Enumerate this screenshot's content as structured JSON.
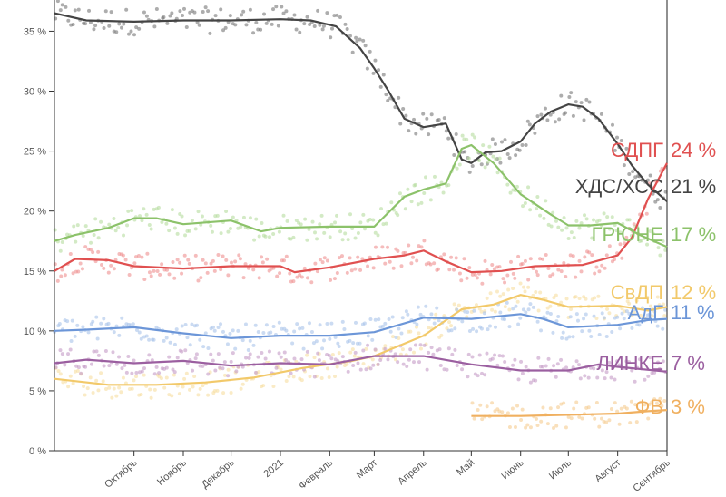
{
  "chart_data": {
    "type": "line",
    "y_unit": "%",
    "ylim": [
      0,
      37
    ],
    "grid": "none",
    "legend": "right, inline at line ends",
    "x_start": "2020-08-12",
    "x_end": "2021-09-01",
    "y_ticks": [
      {
        "value": 0,
        "label": "0 %"
      },
      {
        "value": 5,
        "label": "5 %"
      },
      {
        "value": 10,
        "label": "10 %"
      },
      {
        "value": 15,
        "label": "15 %"
      },
      {
        "value": 20,
        "label": "20 %"
      },
      {
        "value": 25,
        "label": "25 %"
      },
      {
        "value": 30,
        "label": "30 %"
      },
      {
        "value": 35,
        "label": "35 %"
      }
    ],
    "x_ticks": [
      {
        "date": "2020-10-01",
        "label": "Октябрь"
      },
      {
        "date": "2020-11-01",
        "label": "Ноябрь"
      },
      {
        "date": "2020-12-01",
        "label": "Декабрь"
      },
      {
        "date": "2021-01-01",
        "label": "2021"
      },
      {
        "date": "2021-02-01",
        "label": "Февраль"
      },
      {
        "date": "2021-03-01",
        "label": "Март"
      },
      {
        "date": "2021-04-01",
        "label": "Апрель"
      },
      {
        "date": "2021-05-01",
        "label": "Май"
      },
      {
        "date": "2021-06-01",
        "label": "Июнь"
      },
      {
        "date": "2021-07-01",
        "label": "Июль"
      },
      {
        "date": "2021-08-01",
        "label": "Август"
      },
      {
        "date": "2021-09-01",
        "label": "Сентябрь"
      }
    ],
    "series": [
      {
        "name": "ХДС/ХСС",
        "value_label": "21 %",
        "color": "#444444",
        "dot_color": "#777777",
        "points": [
          [
            "2020-08-12",
            36.5
          ],
          [
            "2020-09-01",
            35.9
          ],
          [
            "2020-10-01",
            35.8
          ],
          [
            "2020-11-01",
            35.9
          ],
          [
            "2020-12-01",
            35.9
          ],
          [
            "2021-01-01",
            36.0
          ],
          [
            "2021-01-20",
            35.9
          ],
          [
            "2021-02-05",
            35.4
          ],
          [
            "2021-02-20",
            33.6
          ],
          [
            "2021-03-01",
            31.9
          ],
          [
            "2021-03-10",
            30.0
          ],
          [
            "2021-03-20",
            27.7
          ],
          [
            "2021-04-01",
            27.0
          ],
          [
            "2021-04-15",
            27.3
          ],
          [
            "2021-04-25",
            24.3
          ],
          [
            "2021-05-01",
            24.0
          ],
          [
            "2021-05-10",
            24.9
          ],
          [
            "2021-05-20",
            25.0
          ],
          [
            "2021-06-01",
            25.8
          ],
          [
            "2021-06-10",
            27.3
          ],
          [
            "2021-06-20",
            28.3
          ],
          [
            "2021-07-01",
            28.9
          ],
          [
            "2021-07-10",
            28.7
          ],
          [
            "2021-07-20",
            27.7
          ],
          [
            "2021-08-01",
            25.6
          ],
          [
            "2021-08-10",
            23.8
          ],
          [
            "2021-08-20",
            22.2
          ],
          [
            "2021-09-01",
            20.8
          ]
        ]
      },
      {
        "name": "СДПГ",
        "value_label": "24 %",
        "color": "#e05050",
        "dot_color": "#ee9090",
        "points": [
          [
            "2020-08-12",
            15.0
          ],
          [
            "2020-08-25",
            16.0
          ],
          [
            "2020-09-15",
            15.9
          ],
          [
            "2020-10-01",
            15.4
          ],
          [
            "2020-11-01",
            15.2
          ],
          [
            "2020-12-01",
            15.4
          ],
          [
            "2021-01-01",
            15.4
          ],
          [
            "2021-01-10",
            14.9
          ],
          [
            "2021-02-01",
            15.3
          ],
          [
            "2021-03-01",
            16.0
          ],
          [
            "2021-03-20",
            16.3
          ],
          [
            "2021-04-01",
            16.7
          ],
          [
            "2021-04-15",
            15.8
          ],
          [
            "2021-05-01",
            14.9
          ],
          [
            "2021-05-20",
            15.0
          ],
          [
            "2021-06-10",
            15.4
          ],
          [
            "2021-07-10",
            15.5
          ],
          [
            "2021-08-01",
            16.3
          ],
          [
            "2021-08-10",
            17.8
          ],
          [
            "2021-08-20",
            21.0
          ],
          [
            "2021-09-01",
            24.0
          ]
        ]
      },
      {
        "name": "ГРЮНЕ",
        "value_label": "17 %",
        "color": "#8cc26a",
        "dot_color": "#b6dc9e",
        "points": [
          [
            "2020-08-12",
            17.5
          ],
          [
            "2020-08-25",
            18.0
          ],
          [
            "2020-09-15",
            18.6
          ],
          [
            "2020-10-01",
            19.4
          ],
          [
            "2020-10-15",
            19.4
          ],
          [
            "2020-11-01",
            18.9
          ],
          [
            "2020-12-01",
            19.2
          ],
          [
            "2020-12-20",
            18.3
          ],
          [
            "2021-01-01",
            18.6
          ],
          [
            "2021-02-01",
            18.7
          ],
          [
            "2021-03-01",
            18.7
          ],
          [
            "2021-03-20",
            21.2
          ],
          [
            "2021-04-01",
            21.8
          ],
          [
            "2021-04-15",
            22.3
          ],
          [
            "2021-04-25",
            25.2
          ],
          [
            "2021-05-01",
            25.5
          ],
          [
            "2021-05-15",
            24.0
          ],
          [
            "2021-06-01",
            21.4
          ],
          [
            "2021-06-20",
            19.7
          ],
          [
            "2021-07-01",
            18.8
          ],
          [
            "2021-07-15",
            18.8
          ],
          [
            "2021-08-01",
            19.0
          ],
          [
            "2021-08-15",
            18.0
          ],
          [
            "2021-09-01",
            17.0
          ]
        ]
      },
      {
        "name": "СвДП",
        "value_label": "12 %",
        "color": "#f2c96a",
        "dot_color": "#f7dea0",
        "points": [
          [
            "2020-08-12",
            6.0
          ],
          [
            "2020-09-15",
            5.5
          ],
          [
            "2020-10-15",
            5.5
          ],
          [
            "2020-11-15",
            5.7
          ],
          [
            "2020-12-15",
            6.1
          ],
          [
            "2021-01-15",
            6.9
          ],
          [
            "2021-02-15",
            7.5
          ],
          [
            "2021-03-01",
            7.9
          ],
          [
            "2021-04-01",
            9.6
          ],
          [
            "2021-04-25",
            11.8
          ],
          [
            "2021-05-15",
            12.2
          ],
          [
            "2021-06-01",
            13.0
          ],
          [
            "2021-06-15",
            12.6
          ],
          [
            "2021-07-01",
            12.0
          ],
          [
            "2021-08-01",
            12.1
          ],
          [
            "2021-08-20",
            11.7
          ],
          [
            "2021-09-01",
            12.0
          ]
        ]
      },
      {
        "name": "АдГ",
        "value_label": "11 %",
        "color": "#6c96d8",
        "dot_color": "#a9c3ea",
        "points": [
          [
            "2020-08-12",
            10.0
          ],
          [
            "2020-09-01",
            10.1
          ],
          [
            "2020-10-01",
            10.3
          ],
          [
            "2020-11-01",
            9.8
          ],
          [
            "2020-12-01",
            9.4
          ],
          [
            "2021-01-01",
            9.6
          ],
          [
            "2021-02-01",
            9.6
          ],
          [
            "2021-03-01",
            9.9
          ],
          [
            "2021-04-01",
            11.1
          ],
          [
            "2021-05-01",
            11.0
          ],
          [
            "2021-06-01",
            11.4
          ],
          [
            "2021-06-15",
            11.0
          ],
          [
            "2021-07-01",
            10.3
          ],
          [
            "2021-08-01",
            10.5
          ],
          [
            "2021-08-20",
            10.9
          ],
          [
            "2021-09-01",
            11.0
          ]
        ]
      },
      {
        "name": "ЛИНКЕ",
        "value_label": "7 %",
        "color": "#9b5fa0",
        "dot_color": "#c49bc7",
        "points": [
          [
            "2020-08-12",
            7.3
          ],
          [
            "2020-09-01",
            7.6
          ],
          [
            "2020-10-01",
            7.3
          ],
          [
            "2020-11-01",
            7.5
          ],
          [
            "2020-12-01",
            7.1
          ],
          [
            "2021-01-01",
            7.3
          ],
          [
            "2021-02-01",
            7.2
          ],
          [
            "2021-03-01",
            7.9
          ],
          [
            "2021-04-01",
            7.9
          ],
          [
            "2021-05-01",
            7.2
          ],
          [
            "2021-06-01",
            6.7
          ],
          [
            "2021-07-01",
            6.7
          ],
          [
            "2021-07-20",
            7.2
          ],
          [
            "2021-08-01",
            7.0
          ],
          [
            "2021-09-01",
            6.6
          ]
        ]
      },
      {
        "name": "ФВ",
        "value_label": "3 %",
        "color": "#f0b060",
        "dot_color": "#f5cc90",
        "points": [
          [
            "2021-05-01",
            2.9
          ],
          [
            "2021-06-01",
            2.9
          ],
          [
            "2021-07-01",
            3.0
          ],
          [
            "2021-08-01",
            3.1
          ],
          [
            "2021-08-20",
            3.3
          ],
          [
            "2021-09-01",
            3.4
          ]
        ]
      }
    ]
  }
}
